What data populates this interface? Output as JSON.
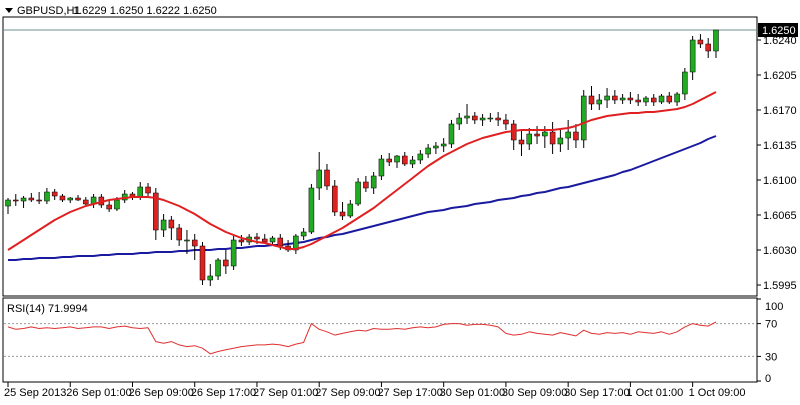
{
  "window": {
    "symbol_label": "GBPUSD,H1",
    "ohlc_label": "1.6229 1.6250 1.6222 1.6250",
    "current_price_label": "1.6250",
    "dropdown_icon": "triangle-down-icon"
  },
  "colors": {
    "bull_candle": "#22aa22",
    "bear_candle": "#dd2222",
    "wick": "#000000",
    "ma_fast": "#e02020",
    "ma_slow": "#1a1aa0",
    "rsi_line": "#e03030",
    "grid_level": "#999999",
    "price_line": "#6f8c8c"
  },
  "chart_data": [
    {
      "type": "candlestick",
      "title": "GBPUSD,H1",
      "ylim": [
        1.5985,
        1.6262
      ],
      "yticks": [
        "1.6240",
        "1.6205",
        "1.6170",
        "1.6135",
        "1.6100",
        "1.6065",
        "1.6030",
        "1.5995"
      ],
      "ytick_values": [
        1.624,
        1.6205,
        1.617,
        1.6135,
        1.61,
        1.6065,
        1.603,
        1.5995
      ],
      "current_price": 1.625,
      "candles": [
        [
          1.6074,
          1.6082,
          1.6066,
          1.608
        ],
        [
          1.608,
          1.6086,
          1.6074,
          1.6079
        ],
        [
          1.6079,
          1.6084,
          1.6072,
          1.6082
        ],
        [
          1.6082,
          1.6087,
          1.6078,
          1.608
        ],
        [
          1.608,
          1.6088,
          1.6076,
          1.6079
        ],
        [
          1.6079,
          1.6092,
          1.6076,
          1.6088
        ],
        [
          1.6088,
          1.6091,
          1.608,
          1.6084
        ],
        [
          1.6084,
          1.6086,
          1.6078,
          1.608
        ],
        [
          1.608,
          1.6083,
          1.6077,
          1.6082
        ],
        [
          1.6082,
          1.6085,
          1.6079,
          1.608
        ],
        [
          1.608,
          1.6083,
          1.6075,
          1.6076
        ],
        [
          1.6076,
          1.6086,
          1.6072,
          1.6083
        ],
        [
          1.6083,
          1.6086,
          1.6072,
          1.6075
        ],
        [
          1.6075,
          1.608,
          1.6068,
          1.6071
        ],
        [
          1.6071,
          1.6083,
          1.6069,
          1.608
        ],
        [
          1.608,
          1.609,
          1.6077,
          1.6086
        ],
        [
          1.6086,
          1.6088,
          1.608,
          1.6083
        ],
        [
          1.6083,
          1.6098,
          1.608,
          1.6093
        ],
        [
          1.6093,
          1.6097,
          1.6084,
          1.6087
        ],
        [
          1.6087,
          1.6092,
          1.604,
          1.605
        ],
        [
          1.605,
          1.6066,
          1.6043,
          1.606
        ],
        [
          1.606,
          1.6064,
          1.604,
          1.6052
        ],
        [
          1.6052,
          1.6056,
          1.6034,
          1.604
        ],
        [
          1.604,
          1.605,
          1.6026,
          1.604
        ],
        [
          1.604,
          1.6046,
          1.602,
          1.6034
        ],
        [
          1.6034,
          1.6038,
          1.5995,
          1.6
        ],
        [
          1.6,
          1.6016,
          1.5994,
          1.6004
        ],
        [
          1.6004,
          1.6022,
          1.6,
          1.602
        ],
        [
          1.602,
          1.603,
          1.6006,
          1.6014
        ],
        [
          1.6014,
          1.6044,
          1.601,
          1.604
        ],
        [
          1.604,
          1.6045,
          1.6034,
          1.6038
        ],
        [
          1.6038,
          1.6046,
          1.6035,
          1.6043
        ],
        [
          1.6043,
          1.6047,
          1.6036,
          1.6041
        ],
        [
          1.6041,
          1.6046,
          1.6036,
          1.6038
        ],
        [
          1.6038,
          1.6044,
          1.6034,
          1.6042
        ],
        [
          1.6042,
          1.6046,
          1.603,
          1.6034
        ],
        [
          1.6034,
          1.604,
          1.6028,
          1.603
        ],
        [
          1.603,
          1.6046,
          1.6026,
          1.6044
        ],
        [
          1.6044,
          1.6052,
          1.604,
          1.6048
        ],
        [
          1.6048,
          1.6096,
          1.6046,
          1.6092
        ],
        [
          1.6092,
          1.6128,
          1.608,
          1.611
        ],
        [
          1.611,
          1.6116,
          1.609,
          1.6094
        ],
        [
          1.6094,
          1.61,
          1.6064,
          1.6068
        ],
        [
          1.6068,
          1.6078,
          1.606,
          1.6064
        ],
        [
          1.6064,
          1.608,
          1.6062,
          1.6076
        ],
        [
          1.6076,
          1.6102,
          1.6074,
          1.6098
        ],
        [
          1.6098,
          1.6104,
          1.6088,
          1.6092
        ],
        [
          1.6092,
          1.6108,
          1.6086,
          1.6104
        ],
        [
          1.6104,
          1.6125,
          1.61,
          1.6121
        ],
        [
          1.6121,
          1.6127,
          1.6114,
          1.6118
        ],
        [
          1.6118,
          1.6125,
          1.6112,
          1.6124
        ],
        [
          1.6124,
          1.6128,
          1.6114,
          1.6116
        ],
        [
          1.6116,
          1.6124,
          1.6112,
          1.612
        ],
        [
          1.612,
          1.613,
          1.6116,
          1.6126
        ],
        [
          1.6126,
          1.6136,
          1.6122,
          1.6132
        ],
        [
          1.6132,
          1.6138,
          1.6126,
          1.6134
        ],
        [
          1.6134,
          1.6142,
          1.6128,
          1.6136
        ],
        [
          1.6136,
          1.616,
          1.6132,
          1.6156
        ],
        [
          1.6156,
          1.6167,
          1.615,
          1.6162
        ],
        [
          1.6162,
          1.6176,
          1.6156,
          1.6164
        ],
        [
          1.6164,
          1.6168,
          1.6156,
          1.616
        ],
        [
          1.616,
          1.6166,
          1.6154,
          1.6162
        ],
        [
          1.6162,
          1.6167,
          1.6158,
          1.6162
        ],
        [
          1.6162,
          1.6168,
          1.6154,
          1.616
        ],
        [
          1.616,
          1.6166,
          1.615,
          1.6156
        ],
        [
          1.6156,
          1.616,
          1.613,
          1.614
        ],
        [
          1.614,
          1.615,
          1.6124,
          1.6136
        ],
        [
          1.6136,
          1.6152,
          1.613,
          1.6146
        ],
        [
          1.6146,
          1.6154,
          1.6136,
          1.6144
        ],
        [
          1.6144,
          1.6154,
          1.6132,
          1.6148
        ],
        [
          1.6148,
          1.6158,
          1.6126,
          1.6136
        ],
        [
          1.6136,
          1.615,
          1.6128,
          1.6142
        ],
        [
          1.6142,
          1.616,
          1.613,
          1.6148
        ],
        [
          1.6148,
          1.6156,
          1.6132,
          1.614
        ],
        [
          1.614,
          1.619,
          1.6132,
          1.6184
        ],
        [
          1.6184,
          1.6194,
          1.617,
          1.6176
        ],
        [
          1.6176,
          1.6186,
          1.617,
          1.618
        ],
        [
          1.618,
          1.6192,
          1.6172,
          1.6184
        ],
        [
          1.6184,
          1.619,
          1.6176,
          1.618
        ],
        [
          1.618,
          1.6186,
          1.6176,
          1.6182
        ],
        [
          1.6182,
          1.6188,
          1.6176,
          1.618
        ],
        [
          1.618,
          1.6186,
          1.6174,
          1.6178
        ],
        [
          1.6178,
          1.6184,
          1.6174,
          1.6182
        ],
        [
          1.6182,
          1.6186,
          1.6174,
          1.6178
        ],
        [
          1.6178,
          1.6186,
          1.6176,
          1.6184
        ],
        [
          1.6184,
          1.6188,
          1.6176,
          1.6178
        ],
        [
          1.6178,
          1.6188,
          1.6174,
          1.6186
        ],
        [
          1.6186,
          1.6212,
          1.618,
          1.6208
        ],
        [
          1.6208,
          1.6244,
          1.62,
          1.624
        ],
        [
          1.624,
          1.6246,
          1.6232,
          1.6236
        ],
        [
          1.6236,
          1.6242,
          1.6222,
          1.6229
        ],
        [
          1.6229,
          1.625,
          1.6222,
          1.625
        ]
      ],
      "ma_fast": [
        1.603,
        1.6035,
        1.604,
        1.6045,
        1.605,
        1.6055,
        1.606,
        1.6064,
        1.6068,
        1.6071,
        1.6074,
        1.6076,
        1.6078,
        1.608,
        1.6081,
        1.6082,
        1.6083,
        1.6083,
        1.6083,
        1.6082,
        1.608,
        1.6077,
        1.6074,
        1.607,
        1.6066,
        1.6061,
        1.6056,
        1.6052,
        1.6048,
        1.6045,
        1.6042,
        1.604,
        1.6038,
        1.6037,
        1.6035,
        1.6033,
        1.6031,
        1.6031,
        1.6033,
        1.6036,
        1.604,
        1.6044,
        1.6048,
        1.6052,
        1.6057,
        1.6062,
        1.6067,
        1.6072,
        1.6078,
        1.6084,
        1.609,
        1.6096,
        1.6102,
        1.6108,
        1.6114,
        1.6119,
        1.6124,
        1.6128,
        1.6132,
        1.6136,
        1.6139,
        1.6142,
        1.6144,
        1.6146,
        1.6148,
        1.6149,
        1.615,
        1.615,
        1.615,
        1.615,
        1.615,
        1.6151,
        1.6152,
        1.6154,
        1.6157,
        1.616,
        1.6162,
        1.6164,
        1.6165,
        1.6166,
        1.6167,
        1.6167,
        1.6168,
        1.6168,
        1.6169,
        1.617,
        1.6171,
        1.6173,
        1.6176,
        1.618,
        1.6184,
        1.6188
      ],
      "ma_slow": [
        1.602,
        1.602,
        1.6021,
        1.6021,
        1.6022,
        1.6022,
        1.6022,
        1.6023,
        1.6023,
        1.6024,
        1.6024,
        1.6024,
        1.6025,
        1.6025,
        1.6026,
        1.6026,
        1.6026,
        1.6027,
        1.6027,
        1.6028,
        1.6028,
        1.6028,
        1.6029,
        1.6029,
        1.603,
        1.603,
        1.603,
        1.6031,
        1.6031,
        1.6032,
        1.6032,
        1.6033,
        1.6034,
        1.6034,
        1.6035,
        1.6035,
        1.6036,
        1.6037,
        1.6038,
        1.604,
        1.6042,
        1.6043,
        1.6045,
        1.6046,
        1.6048,
        1.605,
        1.6052,
        1.6054,
        1.6056,
        1.6058,
        1.606,
        1.6062,
        1.6064,
        1.6066,
        1.6068,
        1.6069,
        1.607,
        1.6072,
        1.6073,
        1.6074,
        1.6076,
        1.6077,
        1.6078,
        1.608,
        1.6081,
        1.6082,
        1.6084,
        1.6085,
        1.6087,
        1.6088,
        1.609,
        1.6092,
        1.6093,
        1.6095,
        1.6097,
        1.6099,
        1.6101,
        1.6103,
        1.6105,
        1.6108,
        1.611,
        1.6113,
        1.6116,
        1.6119,
        1.6122,
        1.6125,
        1.6128,
        1.6131,
        1.6134,
        1.6137,
        1.6141,
        1.6144
      ],
      "xticks": [
        {
          "index": 0,
          "label": "25 Sep 2013"
        },
        {
          "index": 8,
          "label": "26 Sep 01:00"
        },
        {
          "index": 16,
          "label": "26 Sep 09:00"
        },
        {
          "index": 24,
          "label": "26 Sep 17:00"
        },
        {
          "index": 32,
          "label": "27 Sep 01:00"
        },
        {
          "index": 40,
          "label": "27 Sep 09:00"
        },
        {
          "index": 48,
          "label": "27 Sep 17:00"
        },
        {
          "index": 56,
          "label": "30 Sep 01:00"
        },
        {
          "index": 64,
          "label": "30 Sep 09:00"
        },
        {
          "index": 72,
          "label": "30 Sep 17:00"
        },
        {
          "index": 80,
          "label": "1 Oct 01:00"
        },
        {
          "index": 88,
          "label": "1 Oct 09:00"
        }
      ]
    },
    {
      "type": "line",
      "title": "RSI(14) 71.9994",
      "ylim": [
        0,
        100
      ],
      "yticks": [
        "100",
        "70",
        "30",
        "0"
      ],
      "ytick_values": [
        100,
        70,
        30,
        0
      ],
      "levels": [
        70,
        30
      ],
      "values": [
        66,
        63,
        64,
        66,
        64,
        65,
        64,
        65,
        66,
        64,
        65,
        66,
        66,
        64,
        66,
        67,
        65,
        64,
        65,
        48,
        46,
        48,
        44,
        42,
        43,
        40,
        33,
        36,
        38,
        40,
        42,
        43,
        44,
        44,
        45,
        44,
        42,
        45,
        47,
        70,
        63,
        60,
        56,
        58,
        60,
        62,
        61,
        64,
        63,
        63,
        64,
        63,
        65,
        66,
        65,
        66,
        69,
        70,
        70,
        68,
        69,
        69,
        68,
        66,
        58,
        56,
        57,
        60,
        58,
        57,
        56,
        59,
        57,
        55,
        62,
        58,
        57,
        59,
        58,
        59,
        57,
        60,
        59,
        58,
        60,
        57,
        60,
        66,
        70,
        68,
        67,
        72
      ]
    }
  ]
}
